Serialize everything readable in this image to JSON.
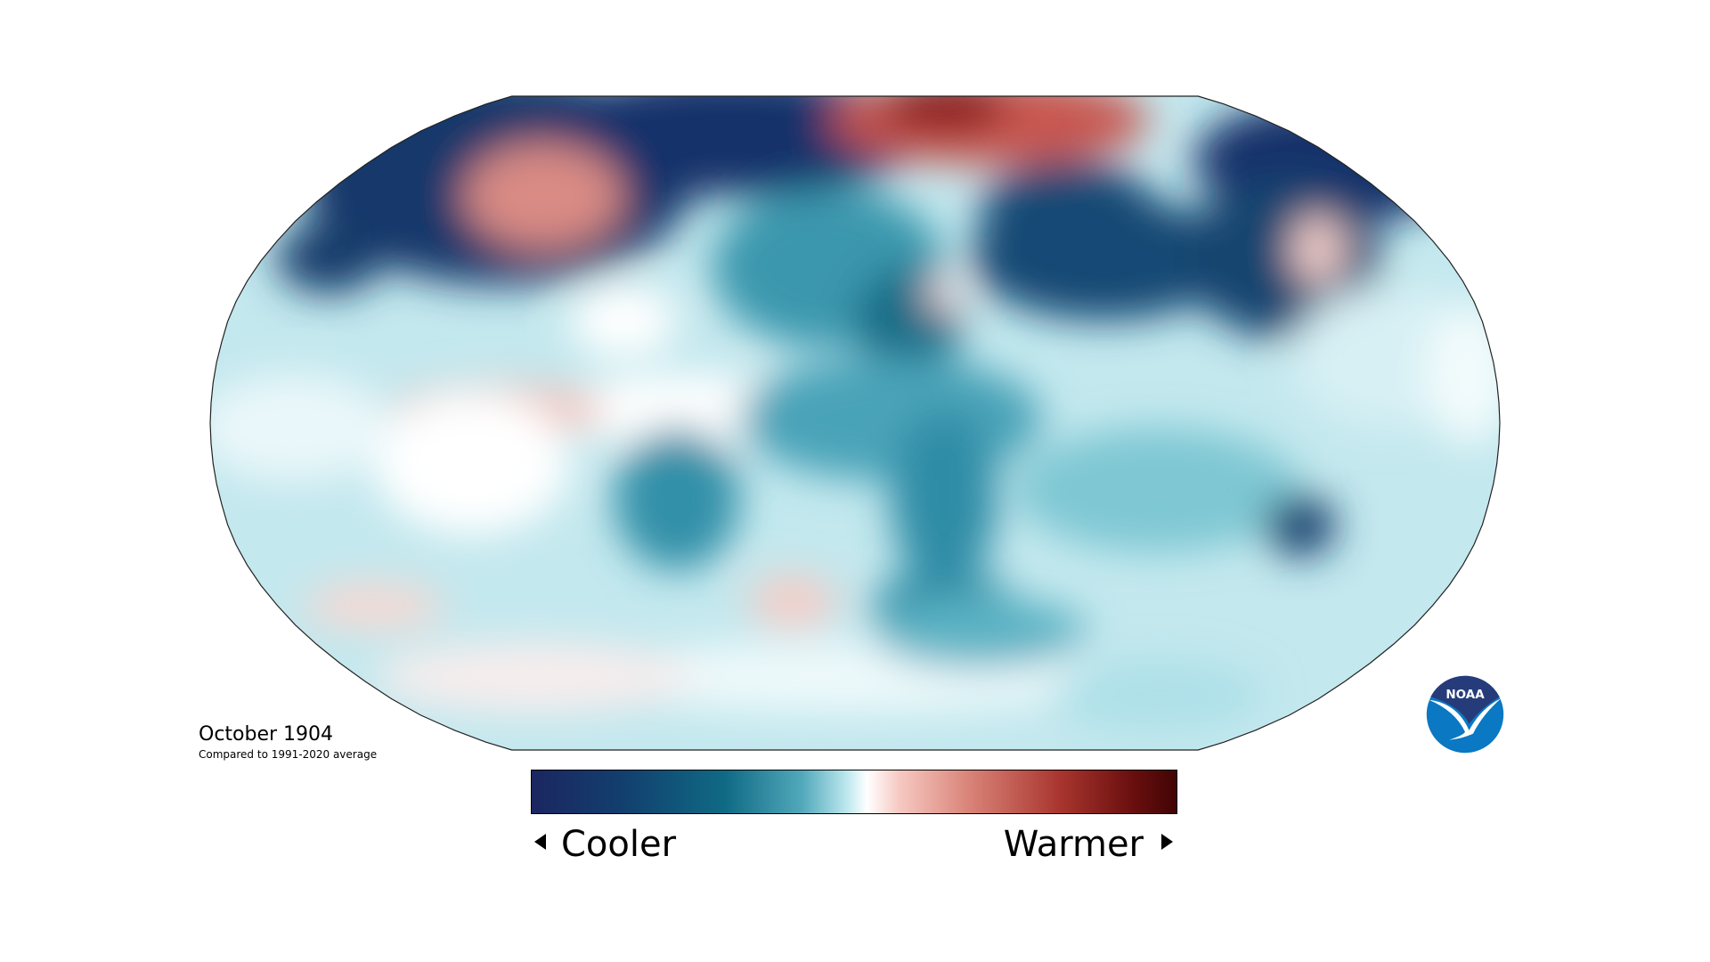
{
  "map": {
    "title": "October 1904",
    "subtitle": "Compared to 1991-2020 average",
    "projection": "Robinson",
    "variable": "temperature anomaly"
  },
  "legend": {
    "low_label": "Cooler",
    "high_label": "Warmer",
    "colors": [
      "#1b2660",
      "#0f6a84",
      "#bfe9ef",
      "#ffffff",
      "#f6c9c2",
      "#a8352e",
      "#420404"
    ]
  },
  "logo": {
    "text": "NOAA",
    "colors": [
      "#263c7a",
      "#0a78c2"
    ]
  }
}
